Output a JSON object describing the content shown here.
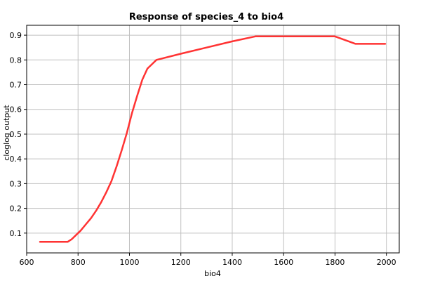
{
  "chart_data": {
    "type": "line",
    "title": "Response of species_4 to bio4",
    "xlabel": "bio4",
    "ylabel": "cloglog output",
    "xlim": [
      600,
      2050
    ],
    "ylim": [
      0.02,
      0.94
    ],
    "xticks": [
      600,
      800,
      1000,
      1200,
      1400,
      1600,
      1800,
      2000
    ],
    "yticks": [
      0.1,
      0.2,
      0.3,
      0.4,
      0.5,
      0.6,
      0.7,
      0.8,
      0.9
    ],
    "grid": true,
    "line_color": "#ff3333",
    "series": [
      {
        "x": [
          652,
          760,
          775,
          790,
          810,
          830,
          850,
          870,
          890,
          910,
          930,
          950,
          970,
          990,
          1010,
          1030,
          1050,
          1070,
          1090,
          1105,
          1200,
          1300,
          1400,
          1490,
          1600,
          1700,
          1800,
          1880,
          1995
        ],
        "y": [
          0.065,
          0.065,
          0.075,
          0.09,
          0.11,
          0.135,
          0.16,
          0.19,
          0.225,
          0.265,
          0.31,
          0.37,
          0.435,
          0.505,
          0.585,
          0.655,
          0.72,
          0.765,
          0.785,
          0.8,
          0.825,
          0.85,
          0.875,
          0.895,
          0.895,
          0.895,
          0.895,
          0.865,
          0.865
        ]
      }
    ]
  }
}
